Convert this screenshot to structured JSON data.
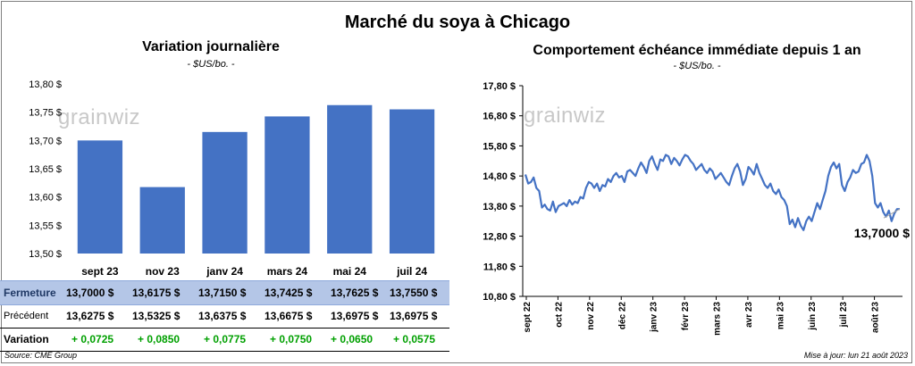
{
  "header": {
    "title": "Marché du soya à Chicago"
  },
  "watermark": "grainwiz",
  "left_panel": {
    "title": "Variation journalière",
    "subtitle": "- $US/bo. -"
  },
  "right_panel": {
    "title": "Comportement échéance immédiate depuis 1 an",
    "subtitle": "- $US/bo. -",
    "last_label": "13,7000 $"
  },
  "table": {
    "rows": [
      {
        "label": "Fermeture",
        "values": [
          "13,7000  $",
          "13,6175  $",
          "13,7150  $",
          "13,7425  $",
          "13,7625  $",
          "13,7550  $"
        ]
      },
      {
        "label": "Précédent",
        "values": [
          "13,6275  $",
          "13,5325  $",
          "13,6375  $",
          "13,6675  $",
          "13,6975  $",
          "13,6975  $"
        ]
      },
      {
        "label": "Variation",
        "values": [
          "+ 0,0725",
          "+ 0,0850",
          "+ 0,0775",
          "+ 0,0750",
          "+ 0,0650",
          "+ 0,0575"
        ]
      }
    ]
  },
  "footer": {
    "source": "Source: CME Group",
    "updated": "Mise à jour: lun 21 août 2023"
  },
  "colors": {
    "bar": "#4472c4",
    "line": "#4472c4",
    "header_row_bg": "#b4c6e7",
    "positive": "#00a000"
  },
  "chart_data": [
    {
      "type": "bar",
      "title": "Variation journalière",
      "subtitle": "- $US/bo. -",
      "categories": [
        "sept 23",
        "nov 23",
        "janv 24",
        "mars 24",
        "mai 24",
        "juil 24"
      ],
      "values": [
        13.7,
        13.6175,
        13.715,
        13.7425,
        13.7625,
        13.755
      ],
      "ylim": [
        13.5,
        13.8
      ],
      "yticks": [
        "13,50 $",
        "13,55 $",
        "13,60 $",
        "13,65 $",
        "13,70 $",
        "13,75 $",
        "13,80 $"
      ],
      "grid": false
    },
    {
      "type": "line",
      "title": "Comportement échéance immédiate depuis 1 an",
      "subtitle": "- $US/bo. -",
      "ylim": [
        10.8,
        17.8
      ],
      "yticks": [
        "10,80 $",
        "11,80 $",
        "12,80 $",
        "13,80 $",
        "14,80 $",
        "15,80 $",
        "16,80 $",
        "17,80 $"
      ],
      "xticks": [
        "sept 22",
        "oct 22",
        "nov 22",
        "déc 22",
        "janv 23",
        "févr 23",
        "mars 23",
        "avr 23",
        "mai 23",
        "juin 23",
        "juil 23",
        "août 23"
      ],
      "series": [
        {
          "values": [
            14.85,
            14.55,
            14.6,
            14.75,
            14.4,
            14.3,
            13.75,
            13.85,
            13.7,
            13.65,
            13.95,
            13.6,
            13.8,
            13.85,
            13.9,
            13.8,
            14.0,
            13.85,
            13.95,
            13.9,
            14.1,
            14.05,
            14.4,
            14.6,
            14.55,
            14.4,
            14.55,
            14.3,
            14.5,
            14.45,
            14.7,
            14.6,
            14.8,
            14.9,
            14.75,
            14.8,
            14.6,
            14.95,
            15.0,
            14.9,
            14.8,
            15.05,
            15.25,
            15.1,
            14.9,
            15.3,
            15.45,
            15.2,
            15.0,
            15.35,
            15.3,
            15.5,
            15.45,
            15.2,
            15.4,
            15.3,
            15.15,
            15.35,
            15.5,
            15.45,
            15.3,
            15.2,
            15.0,
            15.1,
            15.2,
            15.0,
            14.9,
            15.05,
            14.95,
            14.7,
            14.8,
            14.9,
            14.75,
            14.6,
            14.5,
            14.8,
            15.05,
            15.2,
            14.95,
            14.5,
            14.7,
            15.1,
            15.0,
            14.85,
            15.2,
            14.9,
            14.7,
            14.5,
            14.4,
            14.55,
            14.3,
            14.2,
            14.35,
            14.1,
            14.0,
            13.8,
            13.2,
            13.35,
            13.1,
            13.4,
            13.15,
            13.0,
            13.3,
            13.45,
            13.3,
            13.6,
            13.9,
            13.7,
            14.0,
            14.3,
            14.8,
            15.1,
            15.25,
            15.05,
            15.2,
            14.5,
            14.3,
            14.6,
            14.75,
            15.0,
            14.9,
            14.95,
            15.2,
            15.25,
            15.5,
            15.3,
            14.8,
            13.9,
            13.75,
            13.9,
            13.6,
            13.45,
            13.65,
            13.3,
            13.55,
            13.7,
            13.7
          ]
        }
      ]
    }
  ]
}
